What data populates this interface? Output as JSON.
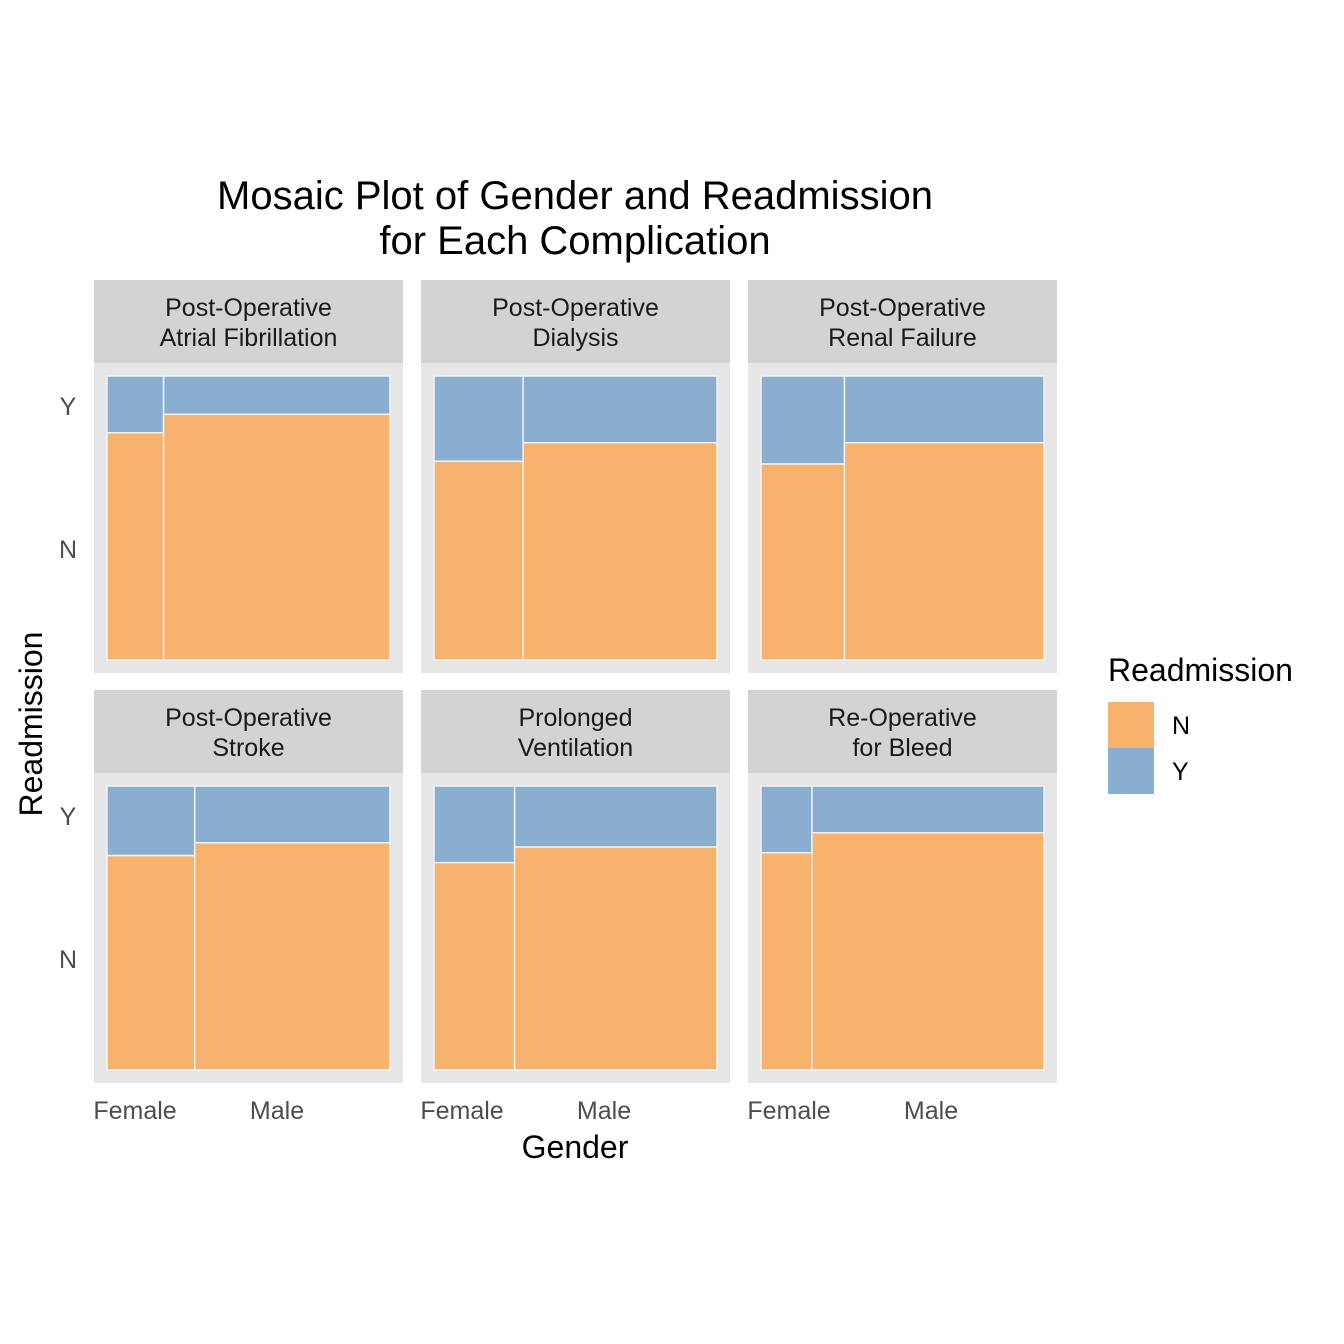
{
  "chart_data": {
    "type": "mosaic",
    "title_lines": [
      "Mosaic Plot of Gender and Readmission",
      "for Each Complication"
    ],
    "xlabel": "Gender",
    "ylabel": "Readmission",
    "x_categories": [
      "Female",
      "Male"
    ],
    "y_categories": [
      "N",
      "Y"
    ],
    "legend": {
      "title": "Readmission",
      "position": "right",
      "items": [
        {
          "label": "N",
          "color": "#F7B26D"
        },
        {
          "label": "Y",
          "color": "#8AAED0"
        }
      ]
    },
    "colors": {
      "N": "#F7B26D",
      "Y": "#8AAED0",
      "panel_bg": "#E6E6E6",
      "strip_bg": "#D3D3D3",
      "tile_border": "#F2F2F2"
    },
    "panels": [
      {
        "strip": [
          "Post-Operative",
          "Atrial Fibrillation"
        ],
        "female_share": 0.2,
        "readmit_y": {
          "Female": 0.2,
          "Male": 0.135
        }
      },
      {
        "strip": [
          "Post-Operative",
          "Dialysis"
        ],
        "female_share": 0.315,
        "readmit_y": {
          "Female": 0.3,
          "Male": 0.235
        }
      },
      {
        "strip": [
          "Post-Operative",
          "Renal Failure"
        ],
        "female_share": 0.295,
        "readmit_y": {
          "Female": 0.31,
          "Male": 0.235
        }
      },
      {
        "strip": [
          "Post-Operative",
          "Stroke"
        ],
        "female_share": 0.31,
        "readmit_y": {
          "Female": 0.245,
          "Male": 0.2
        }
      },
      {
        "strip": [
          "Prolonged",
          "Ventilation"
        ],
        "female_share": 0.285,
        "readmit_y": {
          "Female": 0.27,
          "Male": 0.215
        }
      },
      {
        "strip": [
          "Re-Operative",
          "for Bleed"
        ],
        "female_share": 0.18,
        "readmit_y": {
          "Female": 0.235,
          "Male": 0.165
        }
      }
    ]
  }
}
